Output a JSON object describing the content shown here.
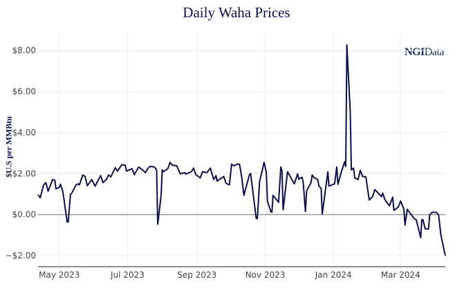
{
  "chart_data": {
    "type": "line",
    "title": "Daily Waha Prices",
    "ylabel": "$U.S per MMBtu",
    "xlabel": "",
    "watermark": "NGIData",
    "xlim": [
      "2023-04-12",
      "2024-04-10"
    ],
    "ylim": [
      -2.54,
      8.85
    ],
    "grid": true,
    "y_ticks": [
      {
        "v": -2,
        "label": "−$2.00"
      },
      {
        "v": 0,
        "label": "$0.00"
      },
      {
        "v": 2,
        "label": "$2.00"
      },
      {
        "v": 4,
        "label": "$4.00"
      },
      {
        "v": 6,
        "label": "$6.00"
      },
      {
        "v": 8,
        "label": "$8.00"
      }
    ],
    "x_ticks": [
      {
        "d": "2023-05-01",
        "label": "May 2023"
      },
      {
        "d": "2023-07-01",
        "label": "Jul 2023"
      },
      {
        "d": "2023-09-01",
        "label": "Sep 2023"
      },
      {
        "d": "2023-11-01",
        "label": "Nov 2023"
      },
      {
        "d": "2024-01-01",
        "label": "Jan 2024"
      },
      {
        "d": "2024-03-01",
        "label": "Mar 2024"
      }
    ],
    "colors": {
      "line": "#0a0f4a",
      "zero_line": "#9a9a9a",
      "grid": "#ececec",
      "title": "#0c1150"
    },
    "series": [
      {
        "points": [
          [
            "2023-04-12",
            0.97
          ],
          [
            "2023-04-14",
            0.82
          ],
          [
            "2023-04-17",
            1.45
          ],
          [
            "2023-04-19",
            1.56
          ],
          [
            "2023-04-21",
            1.14
          ],
          [
            "2023-04-25",
            1.71
          ],
          [
            "2023-04-27",
            1.67
          ],
          [
            "2023-04-28",
            1.25
          ],
          [
            "2023-05-01",
            1.33
          ],
          [
            "2023-05-02",
            1.48
          ],
          [
            "2023-05-04",
            1.16
          ],
          [
            "2023-05-05",
            0.82
          ],
          [
            "2023-05-08",
            -0.36
          ],
          [
            "2023-05-09",
            -0.36
          ],
          [
            "2023-05-11",
            0.99
          ],
          [
            "2023-05-12",
            1.03
          ],
          [
            "2023-05-16",
            1.45
          ],
          [
            "2023-05-18",
            1.5
          ],
          [
            "2023-05-19",
            1.45
          ],
          [
            "2023-05-22",
            1.93
          ],
          [
            "2023-05-24",
            1.86
          ],
          [
            "2023-05-26",
            1.41
          ],
          [
            "2023-05-30",
            1.71
          ],
          [
            "2023-06-02",
            1.39
          ],
          [
            "2023-06-07",
            1.9
          ],
          [
            "2023-06-09",
            1.56
          ],
          [
            "2023-06-12",
            1.71
          ],
          [
            "2023-06-14",
            1.93
          ],
          [
            "2023-06-16",
            1.84
          ],
          [
            "2023-06-20",
            2.29
          ],
          [
            "2023-06-22",
            2.12
          ],
          [
            "2023-06-23",
            2.2
          ],
          [
            "2023-06-26",
            2.44
          ],
          [
            "2023-06-29",
            2.41
          ],
          [
            "2023-06-30",
            2.12
          ],
          [
            "2023-07-05",
            2.24
          ],
          [
            "2023-07-07",
            1.95
          ],
          [
            "2023-07-11",
            2.32
          ],
          [
            "2023-07-13",
            2.24
          ],
          [
            "2023-07-17",
            2.05
          ],
          [
            "2023-07-19",
            2.24
          ],
          [
            "2023-07-21",
            2.35
          ],
          [
            "2023-07-25",
            2.32
          ],
          [
            "2023-07-27",
            2.18
          ],
          [
            "2023-07-28",
            -0.47
          ],
          [
            "2023-07-31",
            0.94
          ],
          [
            "2023-08-01",
            2.18
          ],
          [
            "2023-08-02",
            2.09
          ],
          [
            "2023-08-06",
            2.24
          ],
          [
            "2023-08-08",
            2.55
          ],
          [
            "2023-08-10",
            2.41
          ],
          [
            "2023-08-14",
            2.38
          ],
          [
            "2023-08-17",
            1.99
          ],
          [
            "2023-08-21",
            2.05
          ],
          [
            "2023-08-22",
            1.98
          ],
          [
            "2023-08-27",
            2.09
          ],
          [
            "2023-08-29",
            2.27
          ],
          [
            "2023-08-31",
            1.95
          ],
          [
            "2023-09-04",
            1.79
          ],
          [
            "2023-09-06",
            2.09
          ],
          [
            "2023-09-10",
            2.05
          ],
          [
            "2023-09-13",
            2.27
          ],
          [
            "2023-09-16",
            1.71
          ],
          [
            "2023-09-18",
            1.9
          ],
          [
            "2023-09-19",
            1.64
          ],
          [
            "2023-09-25",
            1.86
          ],
          [
            "2023-09-27",
            1.53
          ],
          [
            "2023-09-30",
            1.45
          ],
          [
            "2023-10-02",
            2.46
          ],
          [
            "2023-10-04",
            2.38
          ],
          [
            "2023-10-07",
            2.46
          ],
          [
            "2023-10-09",
            2.46
          ],
          [
            "2023-10-11",
            1.84
          ],
          [
            "2023-10-13",
            0.94
          ],
          [
            "2023-10-18",
            1.95
          ],
          [
            "2023-10-19",
            2.01
          ],
          [
            "2023-10-24",
            -0.19
          ],
          [
            "2023-10-25",
            -0.19
          ],
          [
            "2023-10-27",
            1.62
          ],
          [
            "2023-10-31",
            2.55
          ],
          [
            "2023-11-02",
            2.07
          ],
          [
            "2023-11-03",
            0.66
          ],
          [
            "2023-11-06",
            0.15
          ],
          [
            "2023-11-07",
            0.12
          ],
          [
            "2023-11-08",
            0.94
          ],
          [
            "2023-11-13",
            0.6
          ],
          [
            "2023-11-15",
            2.32
          ],
          [
            "2023-11-16",
            2.12
          ],
          [
            "2023-11-17",
            0.23
          ],
          [
            "2023-11-21",
            2.09
          ],
          [
            "2023-11-27",
            1.5
          ],
          [
            "2023-11-30",
            1.99
          ],
          [
            "2023-12-01",
            1.73
          ],
          [
            "2023-12-04",
            1.82
          ],
          [
            "2023-12-05",
            1.56
          ],
          [
            "2023-12-07",
            0.15
          ],
          [
            "2023-12-08",
            1.16
          ],
          [
            "2023-12-12",
            1.56
          ],
          [
            "2023-12-13",
            1.93
          ],
          [
            "2023-12-15",
            1.79
          ],
          [
            "2023-12-18",
            1.71
          ],
          [
            "2023-12-19",
            1.39
          ],
          [
            "2023-12-21",
            1.28
          ],
          [
            "2023-12-22",
            0.03
          ],
          [
            "2023-12-27",
            2.09
          ],
          [
            "2023-12-28",
            1.39
          ],
          [
            "2024-01-02",
            1.5
          ],
          [
            "2024-01-04",
            2.32
          ],
          [
            "2024-01-05",
            1.48
          ],
          [
            "2024-01-08",
            2.07
          ],
          [
            "2024-01-11",
            2.58
          ],
          [
            "2024-01-12",
            2.35
          ],
          [
            "2024-01-13",
            8.28
          ],
          [
            "2024-01-16",
            5.01
          ],
          [
            "2024-01-17",
            2.18
          ],
          [
            "2024-01-19",
            2.27
          ],
          [
            "2024-01-20",
            1.79
          ],
          [
            "2024-01-23",
            1.71
          ],
          [
            "2024-01-25",
            2.16
          ],
          [
            "2024-01-27",
            1.86
          ],
          [
            "2024-01-30",
            1.84
          ],
          [
            "2024-01-31",
            1.45
          ],
          [
            "2024-02-02",
            0.71
          ],
          [
            "2024-02-05",
            0.88
          ],
          [
            "2024-02-07",
            1.22
          ],
          [
            "2024-02-11",
            0.99
          ],
          [
            "2024-02-13",
            0.88
          ],
          [
            "2024-02-14",
            1.05
          ],
          [
            "2024-02-16",
            0.73
          ],
          [
            "2024-02-20",
            0.43
          ],
          [
            "2024-02-23",
            0.85
          ],
          [
            "2024-02-24",
            0.2
          ],
          [
            "2024-02-28",
            0.37
          ],
          [
            "2024-03-01",
            0.66
          ],
          [
            "2024-03-04",
            0.26
          ],
          [
            "2024-03-05",
            -0.51
          ],
          [
            "2024-03-07",
            0.26
          ],
          [
            "2024-03-13",
            -0.19
          ],
          [
            "2024-03-15",
            -0.25
          ],
          [
            "2024-03-19",
            -1.12
          ],
          [
            "2024-03-20",
            -0.25
          ],
          [
            "2024-03-21",
            -0.25
          ],
          [
            "2024-03-23",
            -0.7
          ],
          [
            "2024-03-26",
            -0.7
          ],
          [
            "2024-03-27",
            -0.02
          ],
          [
            "2024-03-29",
            0.11
          ],
          [
            "2024-04-02",
            0.11
          ],
          [
            "2024-04-04",
            -0.02
          ],
          [
            "2024-04-06",
            -0.98
          ],
          [
            "2024-04-09",
            -1.77
          ],
          [
            "2024-04-10",
            -2.0
          ]
        ]
      }
    ]
  }
}
